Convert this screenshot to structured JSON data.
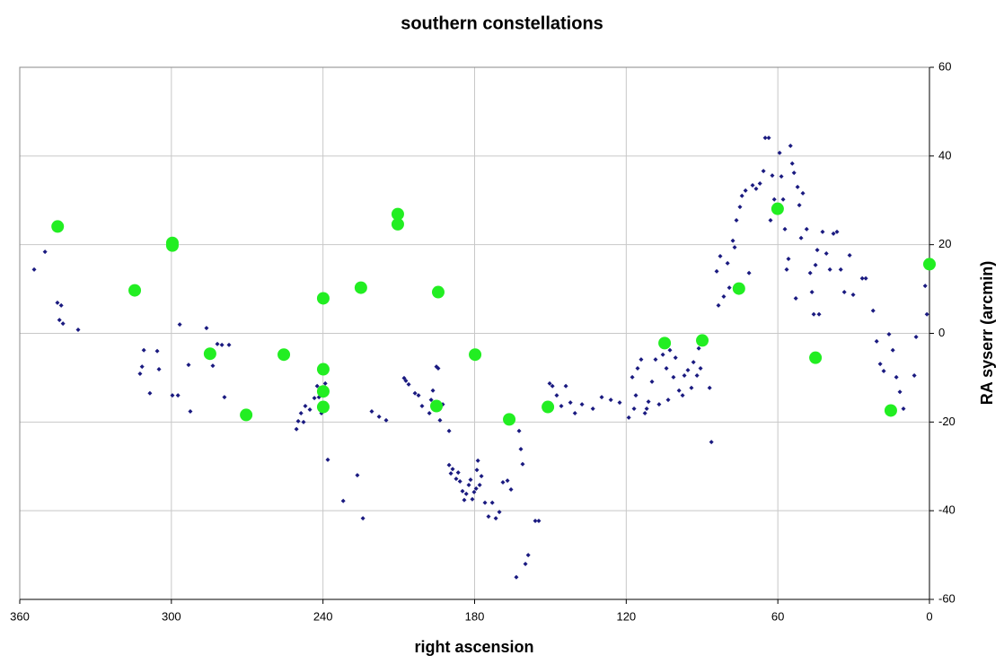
{
  "chart_data": {
    "type": "scatter",
    "title": "southern constellations",
    "xlabel": "right ascension",
    "ylabel": "RA syserr (arcmin)",
    "xlim": [
      360,
      0
    ],
    "ylim": [
      -60,
      60
    ],
    "xticks": [
      360,
      300,
      240,
      180,
      120,
      60,
      0
    ],
    "yticks": [
      -60,
      -40,
      -20,
      0,
      20,
      40,
      60
    ],
    "y_axis_side": "right",
    "grid": true,
    "series": [
      {
        "color": "#1a1a80",
        "marker": "diamond",
        "x": [
          354.3,
          350,
          345.1,
          343.6,
          344.3,
          342.9,
          336.9,
          312.4,
          311.6,
          310.9,
          308.5,
          305.6,
          304.9,
          299.6,
          297.4,
          296.7,
          293.2,
          292.5,
          286.1,
          285.3,
          283.6,
          281.8,
          280,
          279,
          277.2,
          250.5,
          249.8,
          248.7,
          247.7,
          247,
          245.2,
          243.4,
          242.3,
          241.6,
          240.6,
          239.1,
          238.1,
          232,
          226.4,
          224.2,
          220.7,
          217.8,
          215,
          207.9,
          207.2,
          206.1,
          203.6,
          202.2,
          200.8,
          197.9,
          197.2,
          196.5,
          195.8,
          195.1,
          194.4,
          193.7,
          192.6,
          190.1,
          190.1,
          189.4,
          188.7,
          187.3,
          186.5,
          185.8,
          184.8,
          184.1,
          183.3,
          182.3,
          181.6,
          180.9,
          180.2,
          179.4,
          179.1,
          178.7,
          178,
          177.3,
          175.9,
          174.5,
          173,
          171.6,
          170.2,
          168.8,
          167,
          165.6,
          163.5,
          162.4,
          161.7,
          161,
          159.9,
          158.8,
          156,
          154.6,
          150.3,
          149.2,
          147.5,
          145.7,
          143.9,
          142.1,
          140.3,
          137.5,
          133.2,
          129.7,
          126.1,
          122.6,
          119,
          117.6,
          116.9,
          116.2,
          115.5,
          114.1,
          112.6,
          111.9,
          111.2,
          109.8,
          108.4,
          107,
          105.5,
          104.1,
          103.4,
          102.7,
          101.3,
          100.5,
          99.1,
          97.7,
          97,
          95.6,
          94.2,
          93.4,
          92,
          91.3,
          90.6,
          87,
          86.3,
          84.2,
          83.5,
          82.8,
          81.4,
          79.9,
          79.2,
          77.8,
          77.1,
          76.4,
          75,
          74.2,
          72.8,
          71.4,
          70,
          68.6,
          67.1,
          65.7,
          65,
          63.6,
          62.9,
          62.2,
          61.4,
          59.3,
          58.6,
          57.9,
          57.2,
          56.5,
          55.8,
          55,
          54.3,
          53.6,
          52.9,
          52.2,
          51.5,
          50.8,
          50.1,
          48.6,
          47.2,
          46.5,
          45.8,
          45.1,
          44.4,
          43.7,
          42.3,
          40.8,
          39.4,
          38,
          36.6,
          35.1,
          33.7,
          31.6,
          30.2,
          26.6,
          25.2,
          22.3,
          20.9,
          19.5,
          18.1,
          16,
          14.5,
          13.1,
          11.7,
          10.3,
          6,
          5.3,
          1.7,
          1
        ],
        "values": [
          14.4,
          18.4,
          6.9,
          6.3,
          3,
          2.2,
          0.8,
          -9.1,
          -7.5,
          -3.8,
          -13.5,
          -4,
          -8.1,
          -14,
          -14,
          2,
          -7.1,
          -17.6,
          1.2,
          -4.2,
          -7.3,
          -2.4,
          -2.6,
          -14.4,
          -2.6,
          -21.6,
          -19.8,
          -18,
          -20,
          -16.4,
          -17.2,
          -14.6,
          -11.9,
          -14.4,
          -18,
          -11.3,
          -28.5,
          -37.8,
          -32,
          -41.7,
          -17.6,
          -18.8,
          -19.6,
          -10.1,
          -10.7,
          -11.5,
          -13.5,
          -14,
          -16.4,
          -18,
          -15,
          -12.9,
          -16,
          -7.5,
          -7.9,
          -19.6,
          -16,
          -22,
          -29.7,
          -31.6,
          -30.6,
          -32.8,
          -31.4,
          -33.4,
          -35.6,
          -37.6,
          -36.2,
          -34.2,
          -33,
          -37.4,
          -35.8,
          -35,
          -30.8,
          -28.7,
          -34.2,
          -32.2,
          -38.2,
          -41.3,
          -38.2,
          -41.7,
          -40.3,
          -33.6,
          -33.2,
          -35.2,
          -55,
          -22,
          -26.1,
          -29.5,
          -52,
          -50,
          -42.3,
          -42.3,
          -11.3,
          -11.9,
          -14,
          -16.4,
          -11.9,
          -15.6,
          -18,
          -16,
          -17,
          -14.4,
          -15,
          -15.6,
          -19,
          -9.9,
          -17,
          -14,
          -7.9,
          -5.9,
          -18,
          -17,
          -15.4,
          -10.9,
          -5.9,
          -16,
          -4.8,
          -7.9,
          -15,
          -3.8,
          -9.9,
          -5.5,
          -12.9,
          -14,
          -9.5,
          -8.3,
          -12.3,
          -6.5,
          -9.5,
          -3.4,
          -7.9,
          -12.3,
          -24.5,
          14,
          6.3,
          17.4,
          8.3,
          15.8,
          10.3,
          20.9,
          19.4,
          25.5,
          28.5,
          31,
          32.2,
          13.6,
          33.4,
          32.6,
          33.8,
          36.6,
          44.1,
          44.1,
          25.5,
          35.6,
          30.2,
          40.7,
          35.4,
          30.2,
          23.5,
          14.4,
          16.8,
          42.3,
          38.3,
          36.2,
          7.9,
          33,
          28.9,
          21.5,
          31.6,
          23.5,
          13.6,
          9.3,
          4.3,
          15.4,
          18.8,
          4.3,
          22.9,
          18,
          14.4,
          22.5,
          22.9,
          14.4,
          9.3,
          17.6,
          8.7,
          12.4,
          12.4,
          5.1,
          -1.8,
          -6.9,
          -8.5,
          -0.2,
          -3.8,
          -9.9,
          -13.2,
          -17,
          -9.5,
          -0.8,
          10.7,
          4.3
        ]
      },
      {
        "color": "#22ee22",
        "marker": "circle",
        "x": [
          345,
          314.5,
          299.6,
          299.6,
          284.7,
          270.4,
          255.5,
          239.9,
          239.9,
          239.9,
          239.9,
          225,
          210.4,
          210.4,
          194.4,
          195.1,
          179.8,
          166.3,
          151,
          104.8,
          89.9,
          75.4,
          60.1,
          45.1,
          15.3,
          0
        ],
        "values": [
          24.1,
          9.7,
          20.4,
          19.8,
          -4.6,
          -18.4,
          -4.8,
          7.9,
          -8.1,
          -13.1,
          -16.6,
          10.3,
          26.9,
          24.6,
          9.3,
          -16.4,
          -4.8,
          -19.4,
          -16.6,
          -2.2,
          -1.6,
          10.1,
          28.1,
          -5.5,
          -17.4,
          15.6
        ]
      }
    ]
  }
}
